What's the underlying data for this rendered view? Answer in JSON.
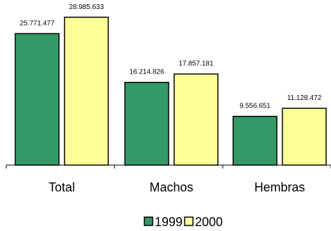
{
  "chart_data": {
    "type": "bar",
    "categories": [
      "Total",
      "Machos",
      "Hembras"
    ],
    "series": [
      {
        "name": "1999",
        "color": "#339966",
        "values": [
          25771477,
          16214826,
          9556651
        ],
        "labels": [
          "25.771.477",
          "16.214.826",
          "9.556.651"
        ]
      },
      {
        "name": "2000",
        "color": "#FFFF99",
        "values": [
          28985633,
          17857181,
          11128472
        ],
        "labels": [
          "28.985.633",
          "17.857.181",
          "11.128.472"
        ]
      }
    ],
    "title": "",
    "xlabel": "",
    "ylabel": "",
    "ylim": [
      0,
      31000000
    ],
    "grid": false,
    "legend_position": "bottom"
  }
}
